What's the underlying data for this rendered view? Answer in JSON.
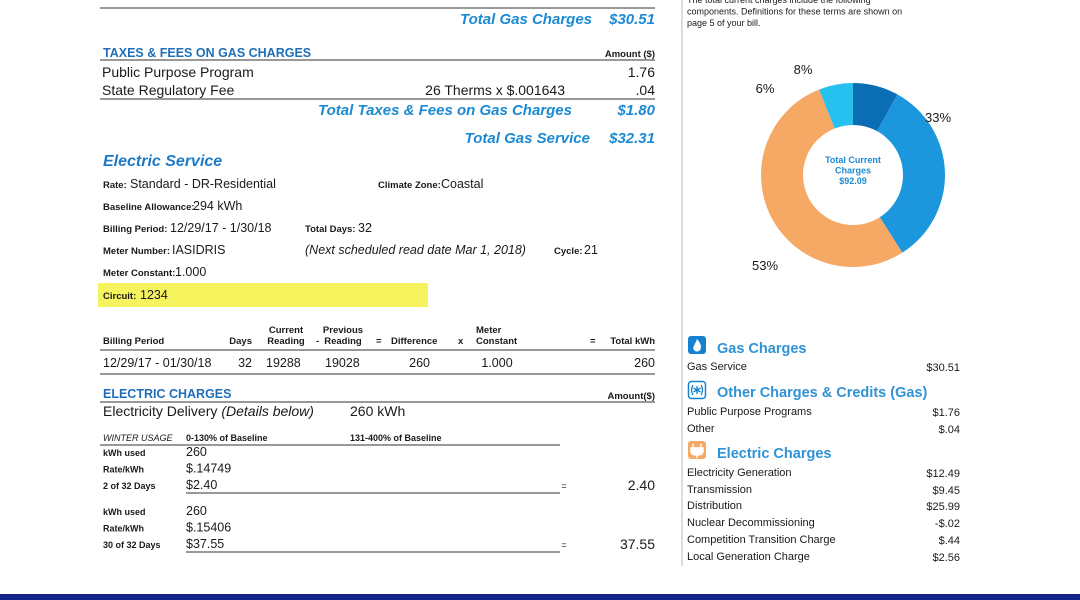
{
  "top": {
    "note": [
      "The total current charges include the following",
      "components. Definitions for these terms are shown on",
      "page 5 of your bill."
    ],
    "total_gas_charges": {
      "label": "Total Gas Charges",
      "value": "$30.51"
    }
  },
  "taxes_fees": {
    "heading": "TAXES & FEES ON GAS CHARGES",
    "amount_header": "Amount ($)",
    "rows": [
      {
        "name": "Public Purpose Program",
        "amount": "1.76"
      },
      {
        "name": "State Regulatory Fee",
        "detail": "26 Therms x $.001643",
        "amount": ".04"
      }
    ],
    "total": {
      "label": "Total Taxes & Fees on Gas Charges",
      "value": "$1.80"
    }
  },
  "total_gas_service": {
    "label": "Total Gas Service",
    "value": "$32.31"
  },
  "electric_service": {
    "heading": "Electric Service",
    "rate": {
      "label": "Rate:",
      "value": "Standard - DR-Residential"
    },
    "climate_zone": {
      "label": "Climate Zone:",
      "value": "Coastal"
    },
    "baseline_allowance": {
      "label": "Baseline Allowance:",
      "value": "294 kWh"
    },
    "billing_period": {
      "label": "Billing Period:",
      "value": "12/29/17 - 1/30/18"
    },
    "total_days": {
      "label": "Total Days:",
      "value": "32"
    },
    "next_read": "(Next scheduled read date Mar 1, 2018)",
    "meter_number": {
      "label": "Meter Number:",
      "value": "IASIDRIS"
    },
    "cycle": {
      "label": "Cycle:",
      "value": "21"
    },
    "meter_constant": {
      "label": "Meter Constant:",
      "value": "1.000"
    },
    "circuit": {
      "label": "Circuit:",
      "value": "1234"
    }
  },
  "meter_table": {
    "headers": {
      "billing_period": "Billing Period",
      "days": "Days",
      "current": [
        "Current",
        "Reading"
      ],
      "minus": "-",
      "previous": [
        "Previous",
        "Reading"
      ],
      "eq1": "=",
      "difference": "Difference",
      "times": "x",
      "constant": [
        "Meter",
        "Constant"
      ],
      "eq2": "=",
      "total": "Total kWh"
    },
    "row": {
      "billing_period": "12/29/17 - 01/30/18",
      "days": "32",
      "current": "19288",
      "previous": "19028",
      "difference": "260",
      "constant": "1.000",
      "total": "260"
    }
  },
  "electric_charges": {
    "heading": "ELECTRIC CHARGES",
    "amount_header": "Amount($)",
    "delivery": {
      "label": "Electricity Delivery",
      "note": "(Details below)",
      "usage": "260 kWh"
    },
    "season": "WINTER USAGE",
    "tiers": [
      "0-130% of Baseline",
      "131-400% of Baseline"
    ],
    "blocks": [
      {
        "labels": [
          "kWh used",
          "Rate/kWh",
          "2 of 32 Days"
        ],
        "values": [
          "260",
          "$.14749",
          "$2.40"
        ],
        "equals": "=",
        "amount": "2.40"
      },
      {
        "labels": [
          "kWh used",
          "Rate/kWh",
          "30 of 32 Days"
        ],
        "values": [
          "260",
          "$.15406",
          "$37.55"
        ],
        "equals": "=",
        "amount": "37.55"
      }
    ]
  },
  "donut": {
    "center_label": [
      "Total Current",
      "Charges",
      "$92.09"
    ],
    "segments": [
      {
        "label": "8%",
        "value": 8,
        "color": "#0b6db3"
      },
      {
        "label": "33%",
        "value": 33,
        "color": "#1c97dd"
      },
      {
        "label": "53%",
        "value": 53,
        "color": "#f6a965"
      },
      {
        "label": "6%",
        "value": 6,
        "color": "#27c1ef"
      }
    ]
  },
  "summary": [
    {
      "title": "Gas Charges",
      "rows": [
        [
          "Gas Service",
          "$30.51"
        ]
      ]
    },
    {
      "title": "Other Charges & Credits (Gas)",
      "rows": [
        [
          "Public Purpose Programs",
          "$1.76"
        ],
        [
          "Other",
          "$.04"
        ]
      ]
    },
    {
      "title": "Electric Charges",
      "rows": [
        [
          "Electricity Generation",
          "$12.49"
        ],
        [
          "Transmission",
          "$9.45"
        ],
        [
          "Distribution",
          "$25.99"
        ],
        [
          "Nuclear Decommissioning",
          "-$.02"
        ],
        [
          "Competition Transition Charge",
          "$.44"
        ],
        [
          "Local Generation Charge",
          "$2.56"
        ]
      ]
    }
  ]
}
